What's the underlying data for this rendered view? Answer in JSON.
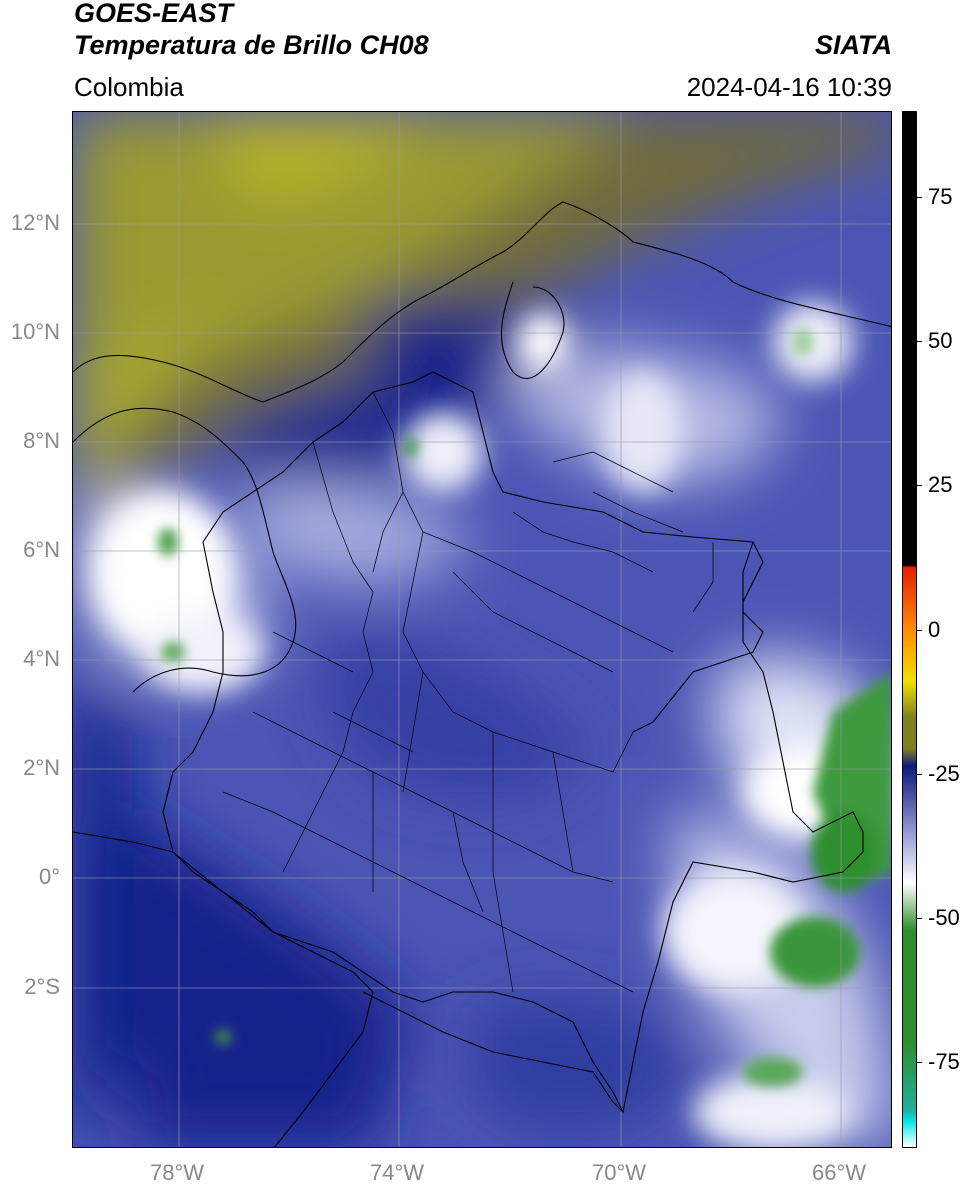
{
  "header": {
    "satellite": "GOES-EAST",
    "product": "Temperatura de Brillo CH08",
    "region": "Colombia",
    "source": "SIATA",
    "datetime": "2024-04-16 10:39"
  },
  "map": {
    "lon_range": [
      -80,
      -65
    ],
    "lat_range": [
      -5,
      14
    ],
    "lat_ticks": [
      "12°N",
      "10°N",
      "8°N",
      "6°N",
      "4°N",
      "2°N",
      "0°",
      "2°S"
    ],
    "lon_ticks": [
      "78°W",
      "74°W",
      "70°W",
      "66°W"
    ],
    "grid": true
  },
  "colorbar": {
    "range": [
      -90,
      90
    ],
    "ticks": [
      "75",
      "50",
      "25",
      "0",
      "-25",
      "-50",
      "-75"
    ],
    "colors": {
      "warm": "#000000",
      "red": "#e51e00",
      "orange": "#ff8c00",
      "yellow": "#f0e000",
      "olive": "#808020",
      "navy": "#0c1a80",
      "blue_light": "#9ea0d6",
      "white": "#ffffff",
      "green": "#2f8f2f",
      "teal": "#20b0a0",
      "cyan": "#00e8e8"
    }
  }
}
